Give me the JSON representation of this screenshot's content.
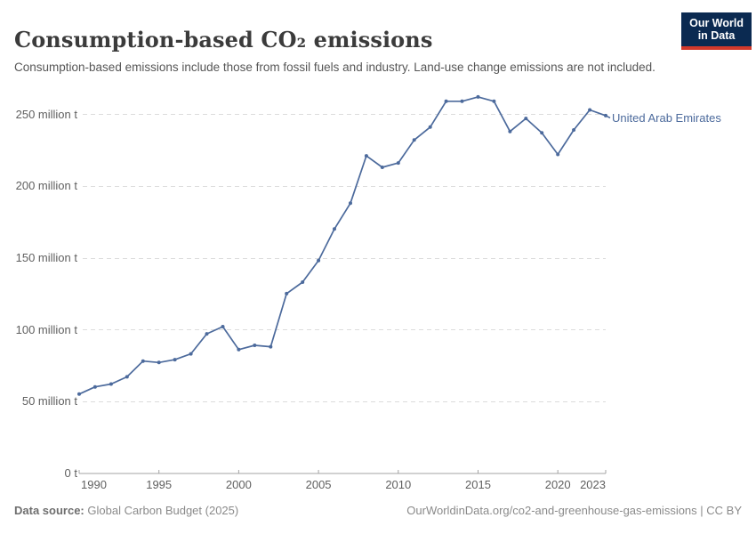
{
  "header": {
    "title": "Consumption-based CO₂ emissions",
    "subtitle": "Consumption-based emissions include those from fossil fuels and industry. Land-use change emissions are not included.",
    "logo": {
      "line1": "Our World",
      "line2": "in Data"
    }
  },
  "entity_label": "United Arab Emirates",
  "chart_data": {
    "type": "line",
    "title": "Consumption-based CO₂ emissions",
    "unit": "million t",
    "grid": "horizontal-dashed",
    "legend_position": "right-of-line",
    "xlim": [
      1990,
      2023
    ],
    "ylim": [
      0,
      250
    ],
    "x": [
      1990,
      1991,
      1992,
      1993,
      1994,
      1995,
      1996,
      1997,
      1998,
      1999,
      2000,
      2001,
      2002,
      2003,
      2004,
      2005,
      2006,
      2007,
      2008,
      2009,
      2010,
      2011,
      2012,
      2013,
      2014,
      2015,
      2016,
      2017,
      2018,
      2019,
      2020,
      2021,
      2022,
      2023
    ],
    "series": [
      {
        "name": "United Arab Emirates",
        "color": "#4C6A9C",
        "values": [
          55,
          60,
          62,
          67,
          78,
          77,
          79,
          83,
          97,
          102,
          86,
          89,
          88,
          125,
          133,
          148,
          170,
          188,
          221,
          213,
          216,
          232,
          241,
          259,
          259,
          262,
          259,
          238,
          247,
          237,
          222,
          239,
          253,
          249
        ]
      }
    ],
    "yticks": [
      {
        "value": 0,
        "label": "0 t"
      },
      {
        "value": 50,
        "label": "50 million t"
      },
      {
        "value": 100,
        "label": "100 million t"
      },
      {
        "value": 150,
        "label": "150 million t"
      },
      {
        "value": 200,
        "label": "200 million t"
      },
      {
        "value": 250,
        "label": "250 million t"
      }
    ],
    "xticks": [
      {
        "year": 1990,
        "label": "1990"
      },
      {
        "year": 1995,
        "label": "1995"
      },
      {
        "year": 2000,
        "label": "2000"
      },
      {
        "year": 2005,
        "label": "2005"
      },
      {
        "year": 2010,
        "label": "2010"
      },
      {
        "year": 2015,
        "label": "2015"
      },
      {
        "year": 2020,
        "label": "2020"
      },
      {
        "year": 2023,
        "label": "2023"
      }
    ]
  },
  "footer": {
    "source_label": "Data source:",
    "source_value": "Global Carbon Budget (2025)",
    "right_text": "OurWorldinData.org/co2-and-greenhouse-gas-emissions | CC BY"
  },
  "colors": {
    "line": "#4C6A9C",
    "axis": "#a3a3a3",
    "grid": "#dcdcdc",
    "tick_text": "#606060",
    "logo_bg": "#0b2a51",
    "logo_red": "#d2392b"
  }
}
